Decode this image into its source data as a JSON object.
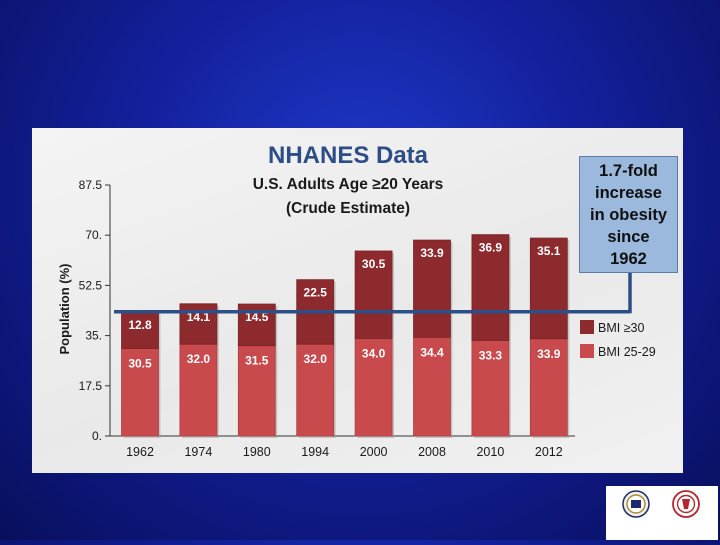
{
  "slide": {
    "background_primary": "#13209c",
    "background_edge": "#080f5c"
  },
  "chart_data": {
    "type": "bar",
    "stacked": true,
    "title": "NHANES Data",
    "subtitle_lines": [
      "U.S. Adults Age ≥20 Years",
      "(Crude Estimate)"
    ],
    "ylabel": "Population (%)",
    "xlabel": "",
    "categories": [
      "1962",
      "1974",
      "1980",
      "1994",
      "2000",
      "2008",
      "2010",
      "2012"
    ],
    "series": [
      {
        "name": "BMI 25-29",
        "color": "#c94a4d",
        "values": [
          30.5,
          32.0,
          31.5,
          32.0,
          34.0,
          34.4,
          33.3,
          33.9
        ],
        "labels": [
          "30.5",
          "32.0",
          "31.5",
          "32.0",
          "34.0",
          "34.4",
          "33.3",
          "33.9"
        ]
      },
      {
        "name": "BMI ≥30",
        "color": "#8d2a2d",
        "values": [
          12.8,
          14.1,
          14.5,
          22.5,
          30.5,
          33.9,
          36.9,
          35.1
        ],
        "labels": [
          "12.8",
          "14.1",
          "14.5",
          "22.5",
          "30.5",
          "33.9",
          "36.9",
          "35.1"
        ]
      }
    ],
    "legend_order": [
      "BMI ≥30",
      "BMI 25-29"
    ],
    "legend_position": "right",
    "ylim": [
      0,
      87.5
    ],
    "yticks": [
      0,
      17.5,
      35,
      52.5,
      70,
      87.5
    ],
    "ytick_labels": [
      "0.",
      "17.5",
      "35.",
      "52.5",
      "70.",
      "87.5"
    ],
    "reference_line": {
      "value": 43.3,
      "color": "#2c4f86"
    },
    "grid": false,
    "annotation": {
      "lines": [
        "1.7-fold",
        "increase",
        "in obesity",
        "since",
        "1962"
      ],
      "background": "#9bb9dc"
    }
  },
  "logos": {
    "left": "university-seal",
    "right": "crest",
    "caption": ""
  }
}
